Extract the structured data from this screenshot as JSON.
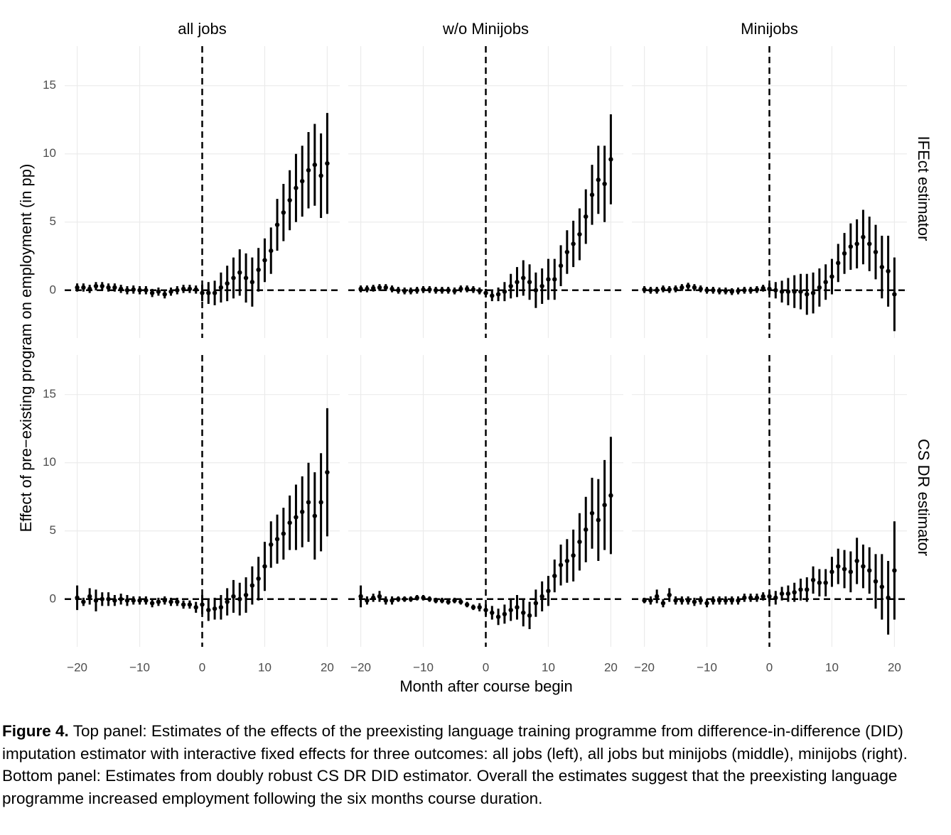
{
  "chart_data": {
    "type": "errorbar",
    "columns": [
      "all jobs",
      "w/o Minijobs",
      "Minijobs"
    ],
    "rows": [
      "IFEct estimator",
      "CS DR estimator"
    ],
    "xlabel": "Month after course begin",
    "ylabel": "Effect of pre−existing program on employment (in pp)",
    "x": [
      -20,
      -19,
      -18,
      -17,
      -16,
      -15,
      -14,
      -13,
      -12,
      -11,
      -10,
      -9,
      -8,
      -7,
      -6,
      -5,
      -4,
      -3,
      -2,
      -1,
      0,
      1,
      2,
      3,
      4,
      5,
      6,
      7,
      8,
      9,
      10,
      11,
      12,
      13,
      14,
      15,
      16,
      17,
      18,
      19,
      20
    ],
    "xlim": [
      -22,
      22
    ],
    "xticks": [
      {
        "value": -20,
        "label": "−20"
      },
      {
        "value": -10,
        "label": "−10"
      },
      0,
      10,
      20
    ],
    "ylim": [
      -3.5,
      17.9
    ],
    "yticks": [
      0,
      5,
      10,
      15
    ],
    "reference_lines": {
      "x": 0,
      "y": 0
    },
    "color": "#000000",
    "grid": true,
    "panels": [
      {
        "values": [
          0.2,
          0.2,
          0.1,
          0.3,
          0.3,
          0.2,
          0.2,
          0.1,
          0,
          0.05,
          0,
          0,
          -0.2,
          -0.1,
          -0.3,
          -0.1,
          0,
          0.1,
          0.1,
          0.05,
          -0.2,
          -0.2,
          -0.2,
          0.2,
          0.5,
          0.9,
          1.3,
          0.9,
          0.6,
          1.5,
          2.2,
          2.9,
          4.8,
          5.7,
          6.6,
          7.5,
          8,
          8.8,
          9.2,
          8.4,
          9.3
        ],
        "errors": [
          0.3,
          0.3,
          0.3,
          0.3,
          0.3,
          0.3,
          0.3,
          0.3,
          0.3,
          0.3,
          0.3,
          0.3,
          0.3,
          0.3,
          0.3,
          0.3,
          0.3,
          0.3,
          0.3,
          0.3,
          0.6,
          0.8,
          0.9,
          1.1,
          1.3,
          1.5,
          1.7,
          1.8,
          1.8,
          1.6,
          1.6,
          1.7,
          1.9,
          2.1,
          2.2,
          2.5,
          2.6,
          2.8,
          3,
          3.1,
          3.7
        ]
      },
      {
        "values": [
          0.1,
          0.1,
          0.15,
          0.2,
          0.2,
          0.1,
          0,
          -0.05,
          -0.05,
          0,
          0.05,
          0.05,
          0,
          0,
          0,
          -0.05,
          0.1,
          0.1,
          0.05,
          -0.05,
          -0.2,
          -0.4,
          -0.3,
          -0.1,
          0.3,
          0.6,
          0.9,
          0.6,
          0,
          0.3,
          0.8,
          0.8,
          1.8,
          2.8,
          3.4,
          4.1,
          5.4,
          7,
          8.1,
          7.8,
          9.6
        ],
        "errors": [
          0.25,
          0.25,
          0.25,
          0.25,
          0.25,
          0.25,
          0.25,
          0.25,
          0.25,
          0.25,
          0.25,
          0.25,
          0.25,
          0.25,
          0.25,
          0.25,
          0.25,
          0.25,
          0.25,
          0.25,
          0.3,
          0.4,
          0.5,
          0.7,
          0.9,
          1.1,
          1.3,
          1.3,
          1.3,
          1.3,
          1.5,
          1.5,
          1.5,
          1.6,
          1.7,
          1.9,
          2,
          2.2,
          2.5,
          2.8,
          3.3
        ]
      },
      {
        "values": [
          0.05,
          0,
          0,
          0.1,
          0.05,
          0.1,
          0.2,
          0.3,
          0.2,
          0.1,
          0,
          0,
          -0.05,
          -0.05,
          -0.1,
          -0.05,
          0,
          0,
          0.05,
          0.15,
          0.1,
          0,
          -0.1,
          -0.1,
          -0.1,
          -0.1,
          -0.3,
          -0.2,
          0.2,
          0.6,
          1,
          2,
          2.7,
          3.2,
          3.4,
          3.9,
          3.4,
          2.8,
          1.7,
          1.4,
          -0.3
        ],
        "errors": [
          0.25,
          0.25,
          0.25,
          0.25,
          0.25,
          0.25,
          0.25,
          0.25,
          0.25,
          0.25,
          0.25,
          0.25,
          0.25,
          0.25,
          0.25,
          0.25,
          0.25,
          0.25,
          0.25,
          0.25,
          0.4,
          0.6,
          0.8,
          1,
          1.2,
          1.3,
          1.5,
          1.5,
          1.4,
          1.3,
          1.3,
          1.4,
          1.5,
          1.7,
          1.8,
          2,
          2,
          2,
          2.3,
          2.6,
          2.7
        ]
      },
      {
        "values": [
          0.1,
          -0.2,
          0.2,
          -0.1,
          0,
          0,
          -0.1,
          0,
          -0.1,
          -0.1,
          -0.1,
          -0.1,
          -0.3,
          -0.2,
          -0.1,
          -0.2,
          -0.2,
          -0.4,
          -0.4,
          -0.6,
          -0.4,
          -0.8,
          -0.7,
          -0.6,
          -0.2,
          0.2,
          0,
          0.3,
          1,
          1.5,
          2.4,
          4,
          4.4,
          4.8,
          5.6,
          6,
          6.4,
          7.1,
          6.1,
          7.1,
          9.3
        ],
        "errors": [
          0.9,
          0.3,
          0.6,
          0.8,
          0.5,
          0.5,
          0.4,
          0.4,
          0.4,
          0.3,
          0.3,
          0.3,
          0.3,
          0.3,
          0.3,
          0.3,
          0.3,
          0.3,
          0.3,
          0.4,
          0.7,
          0.8,
          0.8,
          0.9,
          1,
          1.2,
          1.2,
          1.3,
          1.4,
          1.6,
          1.8,
          1.7,
          1.8,
          1.9,
          2,
          2.4,
          2.6,
          2.9,
          3.2,
          3.6,
          4.7
        ]
      },
      {
        "values": [
          0.2,
          -0.1,
          0.1,
          0.2,
          -0.1,
          -0.1,
          0,
          0,
          0,
          0.1,
          0.1,
          0,
          -0.1,
          -0.1,
          -0.2,
          -0.1,
          -0.2,
          -0.4,
          -0.6,
          -0.6,
          -0.8,
          -1,
          -1.3,
          -1.1,
          -0.8,
          -0.6,
          -1,
          -1.2,
          -0.3,
          0.2,
          0.6,
          1.7,
          2.5,
          2.8,
          3.2,
          4.2,
          5.1,
          6.3,
          5.8,
          6.9,
          7.6
        ],
        "errors": [
          0.8,
          0.3,
          0.3,
          0.4,
          0.3,
          0.3,
          0.2,
          0.2,
          0.2,
          0.2,
          0.2,
          0.2,
          0.2,
          0.2,
          0.2,
          0.2,
          0.2,
          0.2,
          0.2,
          0.3,
          0.4,
          0.5,
          0.6,
          0.7,
          0.8,
          0.9,
          1,
          1,
          1,
          1.1,
          1.1,
          1.2,
          1.5,
          1.6,
          1.9,
          2.1,
          2.4,
          2.6,
          3,
          3.3,
          4.3
        ]
      },
      {
        "values": [
          -0.1,
          -0.1,
          0.2,
          -0.3,
          0.3,
          -0.1,
          -0.1,
          -0.1,
          -0.2,
          -0.1,
          -0.3,
          -0.1,
          -0.1,
          -0.1,
          -0.1,
          -0.1,
          0.1,
          0.1,
          0.1,
          0.2,
          0.2,
          0.1,
          0.4,
          0.4,
          0.5,
          0.7,
          0.7,
          1.4,
          1.2,
          1.2,
          2,
          2.4,
          2.2,
          2,
          2.8,
          2.4,
          2.1,
          1.3,
          0.9,
          0.1,
          2.1
        ],
        "errors": [
          0.2,
          0.3,
          0.5,
          0.3,
          0.5,
          0.3,
          0.3,
          0.3,
          0.3,
          0.3,
          0.3,
          0.3,
          0.3,
          0.3,
          0.3,
          0.3,
          0.3,
          0.3,
          0.3,
          0.3,
          0.4,
          0.5,
          0.5,
          0.6,
          0.7,
          0.8,
          0.9,
          1,
          1,
          1,
          1.1,
          1.3,
          1.4,
          1.5,
          1.7,
          1.6,
          1.7,
          2,
          2.4,
          2.7,
          3.6
        ]
      }
    ]
  },
  "caption": {
    "label": "Figure 4.",
    "text": "Top panel: Estimates of the effects of the preexisting language training programme from difference-in-difference (DID) imputation estimator with interactive fixed effects for three outcomes: all jobs (left), all jobs but minijobs (middle), minijobs (right). Bottom panel: Estimates from doubly robust CS DR DID estimator. Overall the estimates suggest that the preexisting language programme increased employment following the six months course duration."
  }
}
